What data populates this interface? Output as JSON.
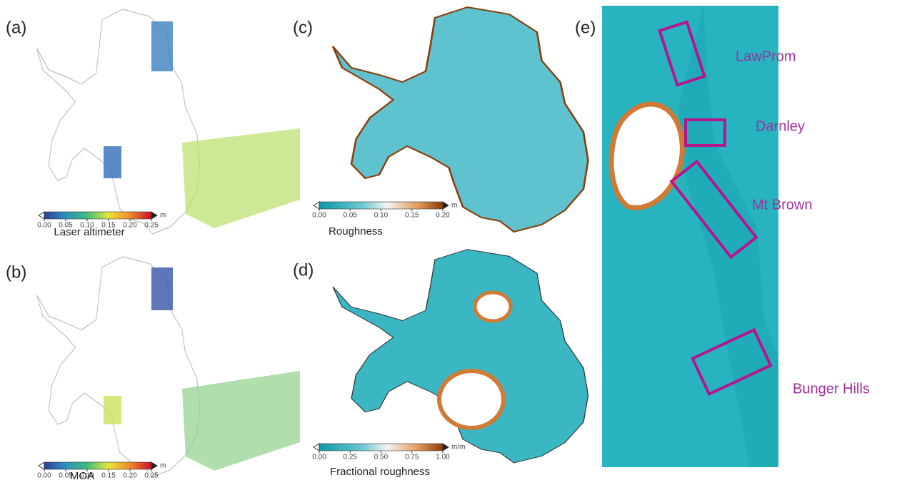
{
  "panels": [
    {
      "label": "(a)",
      "title": "Laser altimeter",
      "unit": "m",
      "cbar_lim": [
        0,
        0.25
      ],
      "ticks": [
        {
          "value": 0,
          "label": "0.00"
        },
        {
          "value": 0.05,
          "label": "0.05"
        },
        {
          "value": 0.1,
          "label": "0.10"
        },
        {
          "value": 0.15,
          "label": "0.15"
        },
        {
          "value": 0.2,
          "label": "0.20"
        },
        {
          "value": 0.25,
          "label": "0.25"
        }
      ]
    },
    {
      "label": "(b)",
      "title": "MOA",
      "unit": "m",
      "cbar_lim": [
        0,
        0.25
      ],
      "ticks": [
        {
          "value": 0,
          "label": "0.00"
        },
        {
          "value": 0.05,
          "label": "0.05"
        },
        {
          "value": 0.1,
          "label": "0.10"
        },
        {
          "value": 0.15,
          "label": "0.15"
        },
        {
          "value": 0.2,
          "label": "0.20"
        },
        {
          "value": 0.25,
          "label": "0.25"
        }
      ]
    },
    {
      "label": "(c)",
      "title": "Roughness",
      "unit": "m",
      "cbar_lim": [
        0,
        0.2
      ],
      "ticks": [
        {
          "value": 0,
          "label": "0.00"
        },
        {
          "value": 0.05,
          "label": "0.05"
        },
        {
          "value": 0.1,
          "label": "0.10"
        },
        {
          "value": 0.15,
          "label": "0.15"
        },
        {
          "value": 0.2,
          "label": "0.20"
        }
      ]
    },
    {
      "label": "(d)",
      "title": "Fractional roughness",
      "unit": "m/m",
      "cbar_lim": [
        0,
        1
      ],
      "ticks": [
        {
          "value": 0,
          "label": "0.00"
        },
        {
          "value": 0.25,
          "label": "0.25"
        },
        {
          "value": 0.5,
          "label": "0.50"
        },
        {
          "value": 0.75,
          "label": "0.75"
        },
        {
          "value": 1,
          "label": "1.00"
        }
      ]
    }
  ],
  "panel_e": {
    "label": "(e)",
    "regions": [
      "LawProm",
      "Darnley",
      "Mt Brown",
      "Bunger Hills"
    ]
  }
}
